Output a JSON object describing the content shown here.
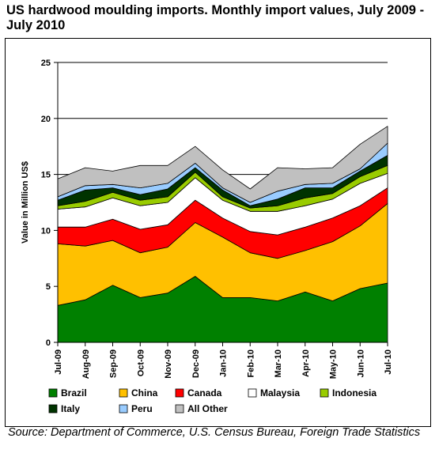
{
  "title": "US hardwood moulding imports. Monthly import values, July 2009 - July 2010",
  "source": "Source: Department of Commerce, U.S. Census Bureau, Foreign Trade Statistics",
  "chart_data": {
    "type": "area",
    "stacked": true,
    "ylabel": "Value in Million US$",
    "ylim": [
      0,
      25
    ],
    "yticks": [
      0,
      5,
      10,
      15,
      20,
      25
    ],
    "grid": "horizontal",
    "legend_position": "bottom",
    "categories": [
      "Jul-09",
      "Aug-09",
      "Sep-09",
      "Oct-09",
      "Nov-09",
      "Dec-09",
      "Jan-10",
      "Feb-10",
      "Mar-10",
      "Apr-10",
      "May-10",
      "Jun-10",
      "Jul-10"
    ],
    "series": [
      {
        "name": "Brazil",
        "color": "#008000",
        "values": [
          3.3,
          3.8,
          5.1,
          4.0,
          4.4,
          5.9,
          4.0,
          4.0,
          3.7,
          4.5,
          3.7,
          4.8,
          5.3
        ]
      },
      {
        "name": "China",
        "color": "#FFC000",
        "values": [
          5.5,
          4.8,
          4.0,
          4.0,
          4.1,
          4.8,
          5.4,
          4.0,
          3.8,
          3.7,
          5.3,
          5.6,
          7.1
        ]
      },
      {
        "name": "Canada",
        "color": "#FF0000",
        "values": [
          1.5,
          1.7,
          1.9,
          2.1,
          2.0,
          2.0,
          1.7,
          1.9,
          2.1,
          2.1,
          2.1,
          1.8,
          1.4
        ]
      },
      {
        "name": "Malaysia",
        "color": "#FFFFFF",
        "values": [
          1.6,
          1.8,
          1.9,
          2.1,
          2.0,
          2.0,
          1.6,
          1.8,
          2.1,
          1.9,
          1.7,
          2.0,
          1.3
        ]
      },
      {
        "name": "Indonesia",
        "color": "#99CC00",
        "values": [
          0.3,
          0.5,
          0.5,
          0.5,
          0.5,
          0.5,
          0.3,
          0.3,
          0.5,
          0.7,
          0.5,
          0.6,
          0.7
        ]
      },
      {
        "name": "Italy",
        "color": "#003300",
        "values": [
          0.5,
          1.0,
          0.4,
          0.5,
          0.7,
          0.4,
          0.6,
          0.2,
          0.6,
          0.9,
          0.5,
          0.5,
          0.9
        ]
      },
      {
        "name": "Peru",
        "color": "#99CCFF",
        "values": [
          0.3,
          0.4,
          0.3,
          0.6,
          0.5,
          0.4,
          0.2,
          0.3,
          0.7,
          0.3,
          0.4,
          0.2,
          1.1
        ]
      },
      {
        "name": "All Other",
        "color": "#C0C0C0",
        "values": [
          1.6,
          1.6,
          1.2,
          2.0,
          1.6,
          1.5,
          1.6,
          1.2,
          2.1,
          1.4,
          1.4,
          2.2,
          1.5
        ]
      }
    ]
  }
}
